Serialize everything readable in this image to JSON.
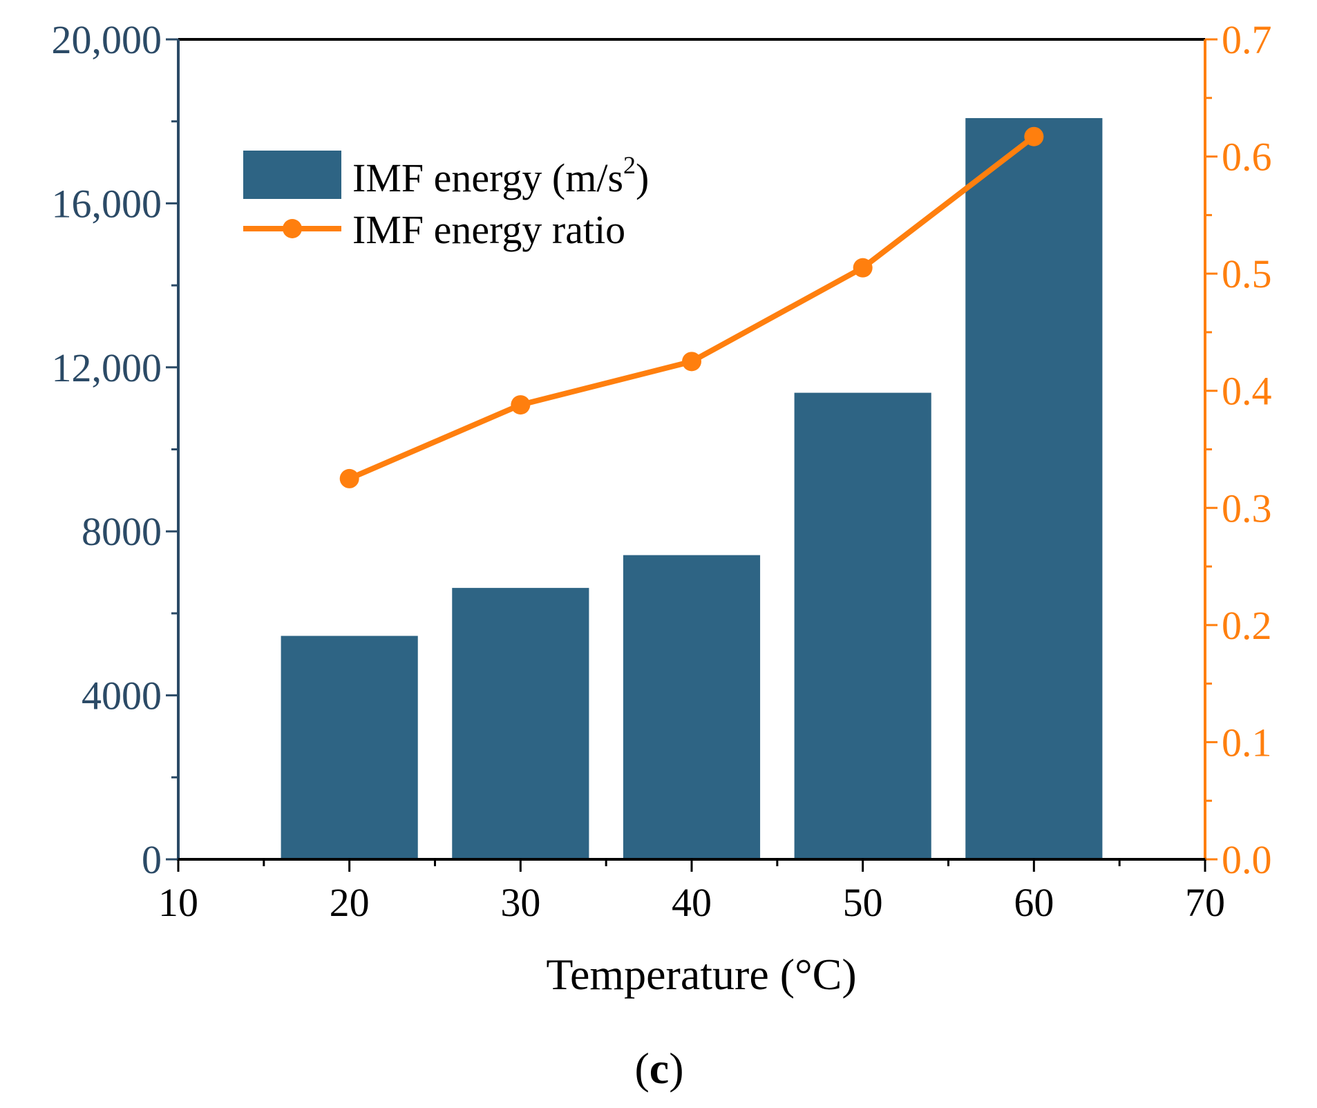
{
  "chart_data": {
    "type": "bar",
    "title": "",
    "xlabel": "Temperature (°C)",
    "ylabel_left": "",
    "ylabel_right": "",
    "panel_label_open": "(",
    "panel_label_letter": "c",
    "panel_label_close": ")",
    "xlim": [
      10,
      70
    ],
    "ylim_left": [
      0,
      20000
    ],
    "ylim_right": [
      0.0,
      0.7
    ],
    "x_ticks": [
      "10",
      "20",
      "30",
      "40",
      "50",
      "60",
      "70"
    ],
    "y_left_ticks": [
      "0",
      "4000",
      "8000",
      "12,000",
      "16,000",
      "20,000"
    ],
    "y_right_ticks": [
      "0.0",
      "0.1",
      "0.2",
      "0.3",
      "0.4",
      "0.5",
      "0.6",
      "0.7"
    ],
    "grid": false,
    "legend_position": "top-left",
    "series": [
      {
        "name": "IMF  energy (m/s",
        "name_superscript": "2",
        "name_suffix": ")",
        "type": "bar",
        "axis": "left",
        "color": "#2e6484",
        "x": [
          20,
          30,
          40,
          50,
          60
        ],
        "values": [
          5450,
          6620,
          7420,
          11380,
          18080
        ]
      },
      {
        "name": "IMF  energy ratio",
        "type": "line",
        "axis": "right",
        "color": "#ff7f0e",
        "x": [
          20,
          30,
          40,
          50,
          60
        ],
        "values": [
          0.325,
          0.388,
          0.425,
          0.505,
          0.617
        ]
      }
    ],
    "colors": {
      "left_axis": "#2b4a66",
      "right_axis": "#ff7f0e",
      "bottom_axis": "#000000"
    }
  }
}
